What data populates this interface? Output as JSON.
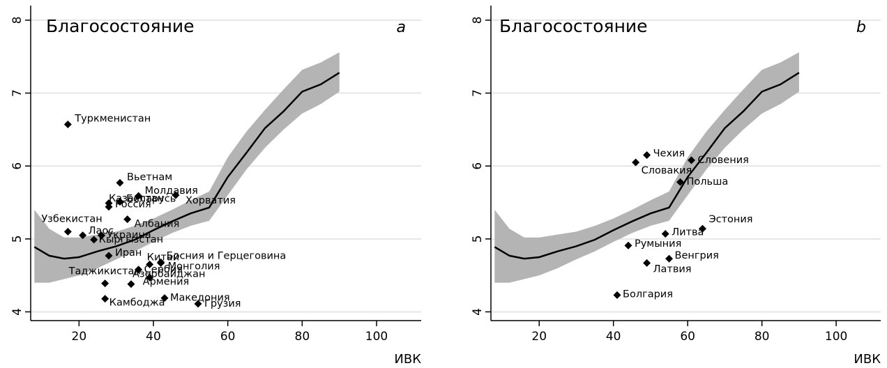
{
  "chart_data": [
    {
      "type": "scatter",
      "panel": "a",
      "title": "Благосостояние",
      "panel_label": "a",
      "xlabel": "ИВК",
      "ylabel": "",
      "xlim": [
        7,
        112
      ],
      "ylim": [
        3.88,
        8.2
      ],
      "x_ticks": [
        20,
        40,
        60,
        80,
        100
      ],
      "y_ticks": [
        4,
        5,
        6,
        7,
        8
      ],
      "grid": true,
      "legend": "none",
      "points": [
        {
          "label": "Туркменистан",
          "x": 17,
          "y": 6.57
        },
        {
          "label": "Вьетнам",
          "x": 31,
          "y": 5.77
        },
        {
          "label": "Молдавия",
          "x": 36,
          "y": 5.59
        },
        {
          "label": "Хорватия",
          "x": 46,
          "y": 5.6
        },
        {
          "label": "Беларусь",
          "x": 31,
          "y": 5.51
        },
        {
          "label": "Россия",
          "x": 28,
          "y": 5.49
        },
        {
          "label": "Казахстан",
          "x": 28,
          "y": 5.44
        },
        {
          "label": "Албания",
          "x": 33,
          "y": 5.27
        },
        {
          "label": "Узбекистан",
          "x": 17,
          "y": 5.1
        },
        {
          "label": "Лаос",
          "x": 21,
          "y": 5.05
        },
        {
          "label": "Украина",
          "x": 26,
          "y": 5.05
        },
        {
          "label": "Кыргызстан",
          "x": 24,
          "y": 4.99
        },
        {
          "label": "Иран",
          "x": 28,
          "y": 4.77
        },
        {
          "label": "Босния и Герцеговина",
          "x": 42,
          "y": 4.67
        },
        {
          "label": "Китай",
          "x": 39,
          "y": 4.65
        },
        {
          "label": "Монголия",
          "x": 42,
          "y": 4.68
        },
        {
          "label": "Сербия",
          "x": 36,
          "y": 4.58
        },
        {
          "label": "Армения",
          "x": 39,
          "y": 4.47
        },
        {
          "label": "Таджикистан",
          "x": 27,
          "y": 4.39
        },
        {
          "label": "Азербайджан",
          "x": 34,
          "y": 4.38
        },
        {
          "label": "Македония",
          "x": 43,
          "y": 4.19
        },
        {
          "label": "Камбоджа",
          "x": 27,
          "y": 4.18
        },
        {
          "label": "Грузия",
          "x": 52,
          "y": 4.11
        }
      ],
      "fit_line": {
        "x": [
          8,
          12,
          16,
          20,
          25,
          30,
          35,
          40,
          45,
          50,
          55,
          60,
          65,
          70,
          75,
          80,
          85,
          90
        ],
        "y": [
          4.89,
          4.77,
          4.73,
          4.75,
          4.83,
          4.9,
          4.99,
          5.12,
          5.24,
          5.35,
          5.43,
          5.85,
          6.18,
          6.52,
          6.75,
          7.02,
          7.12,
          7.28
        ],
        "lower": [
          4.4,
          4.4,
          4.45,
          4.5,
          4.6,
          4.72,
          4.83,
          4.96,
          5.08,
          5.18,
          5.25,
          5.6,
          5.95,
          6.25,
          6.5,
          6.72,
          6.85,
          7.02
        ],
        "upper": [
          5.4,
          5.14,
          5.02,
          5.02,
          5.06,
          5.1,
          5.18,
          5.28,
          5.4,
          5.53,
          5.65,
          6.12,
          6.47,
          6.77,
          7.05,
          7.32,
          7.42,
          7.56
        ]
      }
    },
    {
      "type": "scatter",
      "panel": "b",
      "title": "Благосостояние",
      "panel_label": "b",
      "xlabel": "ИВК",
      "ylabel": "",
      "xlim": [
        7,
        112
      ],
      "ylim": [
        3.88,
        8.2
      ],
      "x_ticks": [
        20,
        40,
        60,
        80,
        100
      ],
      "y_ticks": [
        4,
        5,
        6,
        7,
        8
      ],
      "grid": true,
      "legend": "none",
      "points": [
        {
          "label": "Чехия",
          "x": 49,
          "y": 6.15
        },
        {
          "label": "Словения",
          "x": 61,
          "y": 6.08
        },
        {
          "label": "Словакия",
          "x": 46,
          "y": 6.05
        },
        {
          "label": "Польша",
          "x": 58,
          "y": 5.78
        },
        {
          "label": "Эстония",
          "x": 64,
          "y": 5.14
        },
        {
          "label": "Литва",
          "x": 54,
          "y": 5.07
        },
        {
          "label": "Румыния",
          "x": 44,
          "y": 4.91
        },
        {
          "label": "Венгрия",
          "x": 55,
          "y": 4.73
        },
        {
          "label": "Латвия",
          "x": 49,
          "y": 4.67
        },
        {
          "label": "Болгария",
          "x": 41,
          "y": 4.23
        }
      ],
      "fit_line": {
        "x": [
          8,
          12,
          16,
          20,
          25,
          30,
          35,
          40,
          45,
          50,
          55,
          60,
          65,
          70,
          75,
          80,
          85,
          90
        ],
        "y": [
          4.89,
          4.77,
          4.73,
          4.75,
          4.83,
          4.9,
          4.99,
          5.12,
          5.24,
          5.35,
          5.43,
          5.85,
          6.18,
          6.52,
          6.75,
          7.02,
          7.12,
          7.28
        ],
        "lower": [
          4.4,
          4.4,
          4.45,
          4.5,
          4.6,
          4.72,
          4.83,
          4.96,
          5.08,
          5.18,
          5.25,
          5.6,
          5.95,
          6.25,
          6.5,
          6.72,
          6.85,
          7.02
        ],
        "upper": [
          5.4,
          5.14,
          5.02,
          5.02,
          5.06,
          5.1,
          5.18,
          5.28,
          5.4,
          5.53,
          5.65,
          6.12,
          6.47,
          6.77,
          7.05,
          7.32,
          7.42,
          7.56
        ]
      }
    }
  ],
  "colors": {
    "band": "#b4b4b4",
    "line": "#000000",
    "grid": "#e6e6e6",
    "marker": "#000000"
  }
}
